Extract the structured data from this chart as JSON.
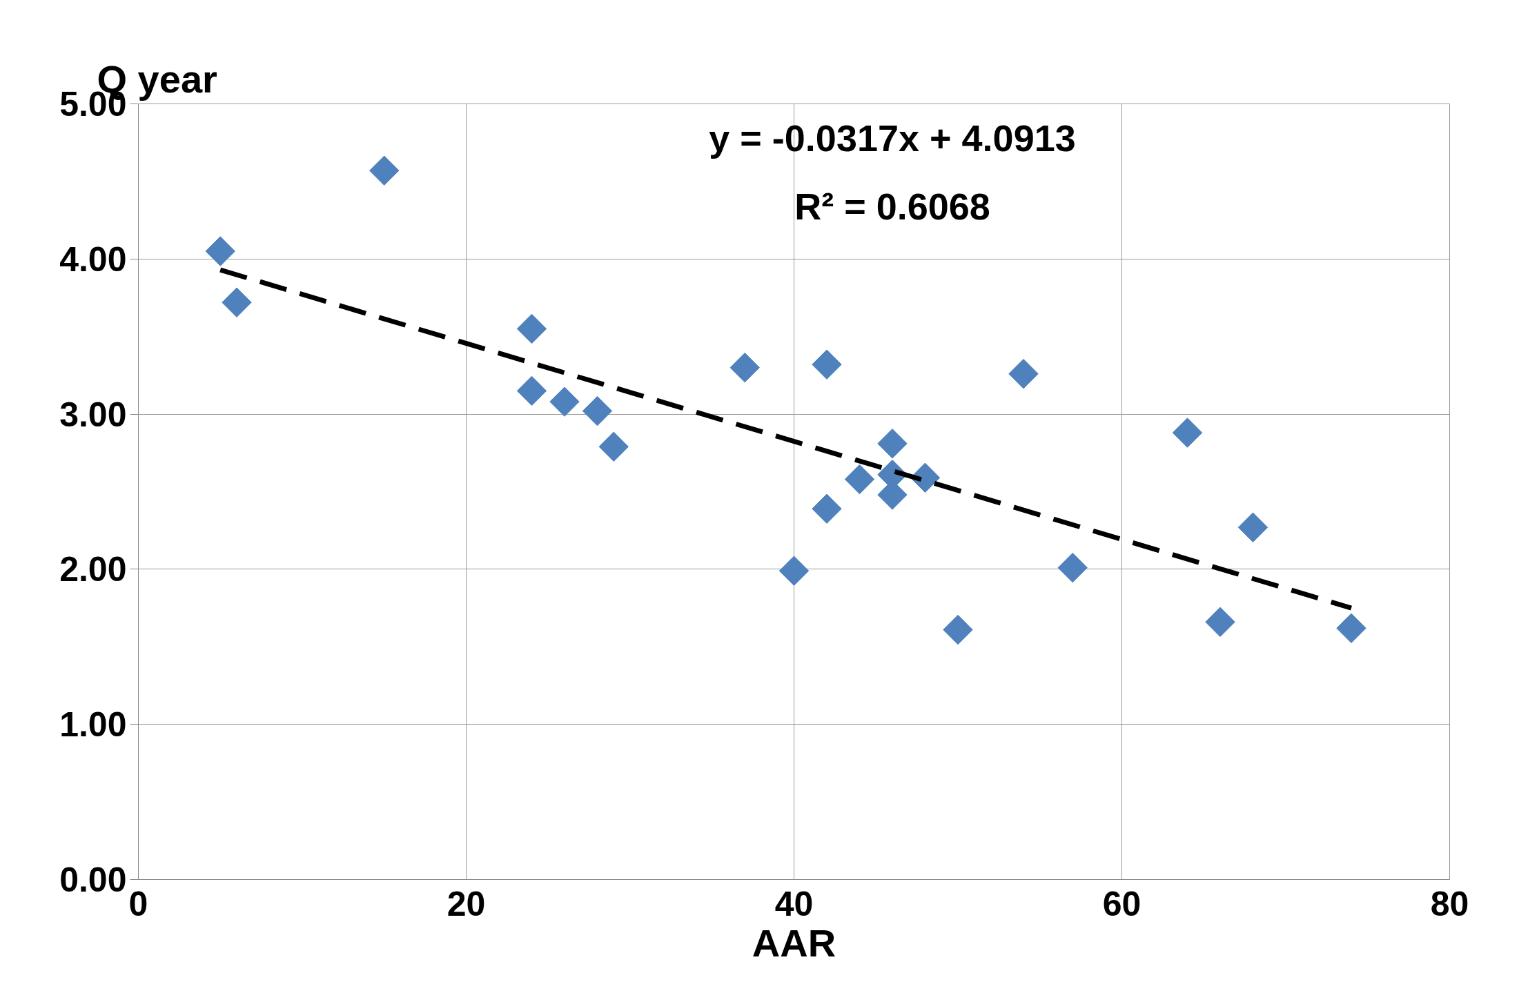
{
  "chart_data": {
    "type": "scatter",
    "xlabel": "AAR",
    "ylabel": "Q year",
    "xlim": [
      0,
      80
    ],
    "xticks": [
      0,
      20,
      40,
      60,
      80
    ],
    "ylim": [
      0,
      5
    ],
    "yticks": [
      {
        "value": 0,
        "label": "0.00"
      },
      {
        "value": 1,
        "label": "1.00"
      },
      {
        "value": 2,
        "label": "2.00"
      },
      {
        "value": 3,
        "label": "3.00"
      },
      {
        "value": 4,
        "label": "4.00"
      },
      {
        "value": 5,
        "label": "5.00"
      }
    ],
    "grid": true,
    "marker": "diamond",
    "series": [
      {
        "color": "#4f81bd",
        "x": [
          5,
          6,
          15,
          24,
          24,
          26,
          28,
          29,
          37,
          42,
          40,
          42,
          44,
          46,
          46,
          46,
          48,
          50,
          54,
          57,
          64,
          66,
          68,
          74
        ],
        "values": [
          4.05,
          3.72,
          4.57,
          3.55,
          3.15,
          3.08,
          3.02,
          2.79,
          3.3,
          3.32,
          1.99,
          2.39,
          2.58,
          2.81,
          2.61,
          2.48,
          2.59,
          1.61,
          3.26,
          2.01,
          2.88,
          1.66,
          2.27,
          1.62
        ]
      },
      {
        "type": "line",
        "color": "#000000",
        "line_style": "dashed",
        "marker": "none",
        "x": [
          5,
          74
        ],
        "values": [
          3.93,
          1.75
        ]
      }
    ],
    "annotations": [
      "y = -0.0317x + 4.0913",
      "R² = 0.6068"
    ]
  }
}
